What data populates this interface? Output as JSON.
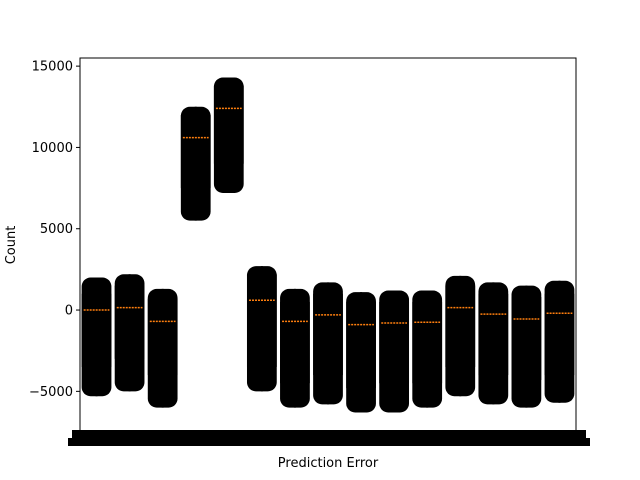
{
  "chart_data": {
    "type": "box",
    "title": "",
    "xlabel": "Prediction Error",
    "ylabel": "Count",
    "ylim": [
      -7500,
      15500
    ],
    "yticks": [
      -5000,
      0,
      5000,
      10000,
      15000
    ],
    "ytick_labels": [
      "−5000",
      "0",
      "5000",
      "10000",
      "15000"
    ],
    "grid": false,
    "legend": "none",
    "colors": {
      "box": "#000000",
      "median": "#ff7f0e",
      "axes": "#000000",
      "background": "#ffffff"
    },
    "boxes": [
      {
        "median": 0,
        "q1": -3500,
        "q3": 1000,
        "whislo": -5300,
        "whishi": 2000
      },
      {
        "median": 150,
        "q1": -3000,
        "q3": 1500,
        "whislo": -5000,
        "whishi": 2200
      },
      {
        "median": -700,
        "q1": -4000,
        "q3": 700,
        "whislo": -6000,
        "whishi": 1300
      },
      {
        "median": 10600,
        "q1": 7500,
        "q3": 12000,
        "whislo": 5500,
        "whishi": 12500
      },
      {
        "median": 12400,
        "q1": 9000,
        "q3": 13800,
        "whislo": 7200,
        "whishi": 14300
      },
      {
        "median": 600,
        "q1": -3500,
        "q3": 2200,
        "whislo": -5000,
        "whishi": 2700
      },
      {
        "median": -700,
        "q1": -4500,
        "q3": 500,
        "whislo": -6000,
        "whishi": 1300
      },
      {
        "median": -300,
        "q1": -4000,
        "q3": 1000,
        "whislo": -5800,
        "whishi": 1700
      },
      {
        "median": -900,
        "q1": -4800,
        "q3": 500,
        "whislo": -6300,
        "whishi": 1100
      },
      {
        "median": -800,
        "q1": -4500,
        "q3": 500,
        "whislo": -6300,
        "whishi": 1200
      },
      {
        "median": -750,
        "q1": -4500,
        "q3": 500,
        "whislo": -6000,
        "whishi": 1200
      },
      {
        "median": 150,
        "q1": -3500,
        "q3": 1500,
        "whislo": -5300,
        "whishi": 2100
      },
      {
        "median": -250,
        "q1": -4000,
        "q3": 1000,
        "whislo": -5800,
        "whishi": 1700
      },
      {
        "median": -550,
        "q1": -4300,
        "q3": 800,
        "whislo": -6000,
        "whishi": 1500
      },
      {
        "median": -200,
        "q1": -4000,
        "q3": 1000,
        "whislo": -5700,
        "whishi": 1800
      }
    ]
  }
}
